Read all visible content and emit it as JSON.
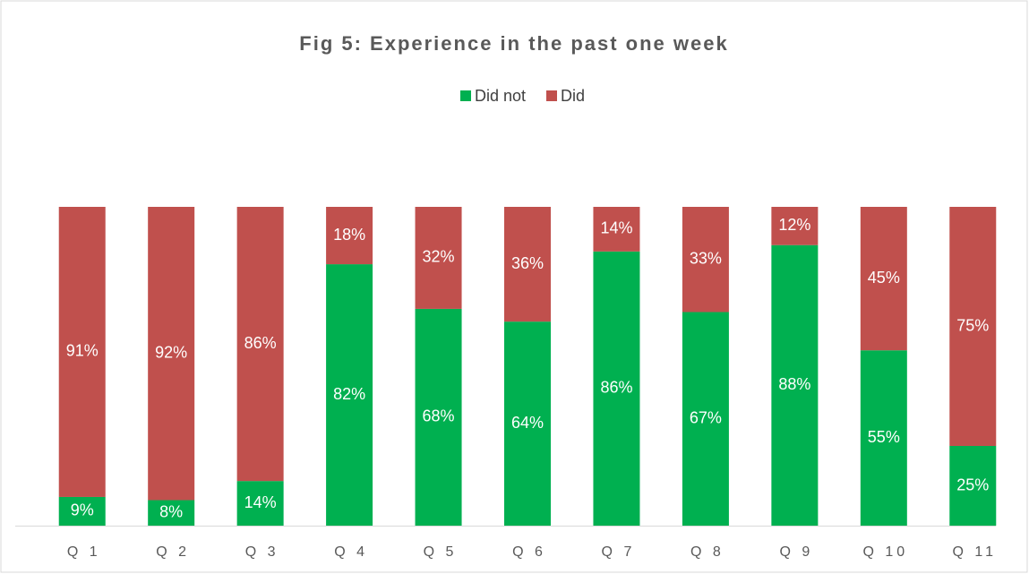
{
  "chart_data": {
    "type": "stacked_bar",
    "title": "Fig 5: Experience in the past one week",
    "categories": [
      "Q 1",
      "Q 2",
      "Q 3",
      "Q 4",
      "Q 5",
      "Q 6",
      "Q 7",
      "Q 8",
      "Q 9",
      "Q 10",
      "Q 11"
    ],
    "series": [
      {
        "name": "Did not",
        "color": "#00b050",
        "values": [
          9,
          8,
          14,
          82,
          68,
          64,
          86,
          67,
          88,
          55,
          25
        ],
        "value_labels": [
          "9%",
          "8%",
          "14%",
          "82%",
          "68%",
          "64%",
          "86%",
          "67%",
          "88%",
          "55%",
          "25%"
        ]
      },
      {
        "name": "Did",
        "color": "#c0504d",
        "values": [
          91,
          92,
          86,
          18,
          32,
          36,
          14,
          33,
          12,
          45,
          75
        ],
        "value_labels": [
          "91%",
          "92%",
          "86%",
          "18%",
          "32%",
          "36%",
          "14%",
          "33%",
          "12%",
          "45%",
          "75%"
        ]
      }
    ],
    "ylim": [
      0,
      100
    ],
    "legend": "top"
  }
}
